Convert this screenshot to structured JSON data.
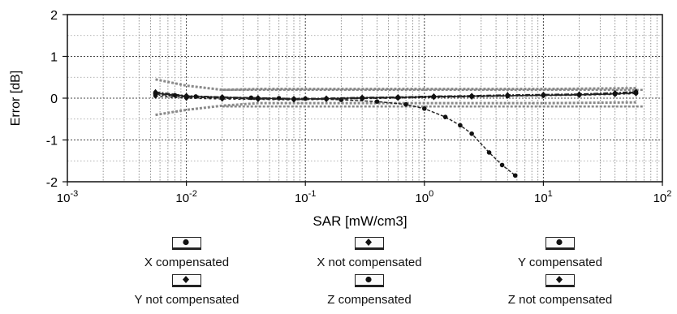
{
  "chart_data": {
    "type": "line",
    "xlabel": "SAR [mW/cm3]",
    "ylabel": "Error [dB]",
    "xscale": "log",
    "xlim": [
      0.001,
      100
    ],
    "ylim": [
      -2,
      2
    ],
    "grid": true,
    "x_ticks": [
      {
        "base": "10",
        "exp": "-3"
      },
      {
        "base": "10",
        "exp": "-2"
      },
      {
        "base": "10",
        "exp": "-1"
      },
      {
        "base": "10",
        "exp": "0"
      },
      {
        "base": "10",
        "exp": "1"
      },
      {
        "base": "10",
        "exp": "2"
      }
    ],
    "y_ticks": [
      "2",
      "1",
      "0",
      "-1",
      "-2"
    ],
    "tolerance_band": [
      -0.2,
      0.2
    ],
    "series": [
      {
        "name": "X compensated",
        "marker": "circle",
        "x": [
          0.0055,
          0.01,
          0.02,
          0.04,
          0.08,
          0.15,
          0.3,
          0.6,
          1.2,
          2.5,
          5,
          10,
          20,
          40,
          60
        ],
        "y": [
          0.12,
          0.05,
          0.02,
          0.0,
          -0.02,
          -0.01,
          0.01,
          0.02,
          0.04,
          0.05,
          0.06,
          0.07,
          0.08,
          0.1,
          0.13
        ]
      },
      {
        "name": "X not compensated",
        "marker": "diamond",
        "x": [
          0.0055,
          0.01,
          0.02,
          0.04,
          0.08,
          0.15,
          0.3,
          0.6,
          1.2,
          2.5,
          5,
          10,
          20,
          40,
          60
        ],
        "y": [
          0.1,
          0.03,
          0.0,
          -0.02,
          -0.03,
          -0.02,
          0.0,
          0.02,
          0.03,
          0.05,
          0.06,
          0.07,
          0.09,
          0.11,
          0.15
        ]
      },
      {
        "name": "Y compensated",
        "marker": "circle",
        "x": [
          0.0055,
          0.01,
          0.02,
          0.04,
          0.08,
          0.15,
          0.3,
          0.6,
          1.2,
          2.5,
          5,
          10,
          20,
          40,
          60
        ],
        "y": [
          0.08,
          0.02,
          0.0,
          -0.01,
          -0.03,
          -0.02,
          -0.01,
          0.01,
          0.03,
          0.04,
          0.05,
          0.07,
          0.08,
          0.1,
          0.12
        ]
      },
      {
        "name": "Y not compensated",
        "marker": "diamond",
        "x": [
          0.0055,
          0.01,
          0.02,
          0.04,
          0.08,
          0.15,
          0.3,
          0.6,
          1.2,
          2.5,
          5,
          10,
          20,
          40,
          60
        ],
        "y": [
          0.15,
          0.06,
          0.03,
          0.01,
          -0.01,
          0.0,
          0.02,
          0.03,
          0.05,
          0.06,
          0.08,
          0.09,
          0.1,
          0.13,
          0.16
        ]
      },
      {
        "name": "Z compensated",
        "marker": "circle",
        "x": [
          0.0055,
          0.008,
          0.012,
          0.02,
          0.035,
          0.06,
          0.1,
          0.2,
          0.4,
          0.7,
          1.0,
          1.5,
          2.0,
          2.5,
          3.5,
          4.5,
          5.8
        ],
        "y": [
          0.12,
          0.07,
          0.04,
          0.02,
          0.01,
          0.0,
          -0.01,
          -0.04,
          -0.08,
          -0.15,
          -0.25,
          -0.45,
          -0.65,
          -0.85,
          -1.3,
          -1.6,
          -1.85
        ]
      },
      {
        "name": "Z not compensated",
        "marker": "diamond",
        "x": [
          0.0055,
          0.01,
          0.02,
          0.04,
          0.08,
          0.15,
          0.3,
          0.6,
          1.2,
          2.5,
          5,
          10,
          20,
          40,
          60
        ],
        "y": [
          0.05,
          0.0,
          -0.02,
          -0.03,
          -0.04,
          -0.03,
          -0.01,
          0.0,
          0.02,
          0.03,
          0.05,
          0.06,
          0.07,
          0.09,
          0.11
        ]
      }
    ],
    "envelopes": [
      {
        "x": [
          0.0055,
          0.01,
          0.02,
          0.04,
          0.1,
          1,
          10,
          60
        ],
        "y": [
          0.45,
          0.3,
          0.2,
          0.22,
          0.22,
          0.22,
          0.22,
          0.24
        ]
      },
      {
        "x": [
          0.0055,
          0.01,
          0.02,
          0.04,
          0.1,
          1,
          10,
          60
        ],
        "y": [
          -0.4,
          -0.28,
          -0.18,
          -0.12,
          -0.12,
          -0.12,
          -0.12,
          -0.1
        ]
      }
    ]
  },
  "legend": {
    "items": [
      {
        "label": "X compensated",
        "marker": "circle"
      },
      {
        "label": "X not compensated",
        "marker": "diamond"
      },
      {
        "label": "Y compensated",
        "marker": "circle"
      },
      {
        "label": "Y not compensated",
        "marker": "diamond"
      },
      {
        "label": "Z compensated",
        "marker": "circle"
      },
      {
        "label": "Z not compensated",
        "marker": "diamond"
      }
    ]
  }
}
